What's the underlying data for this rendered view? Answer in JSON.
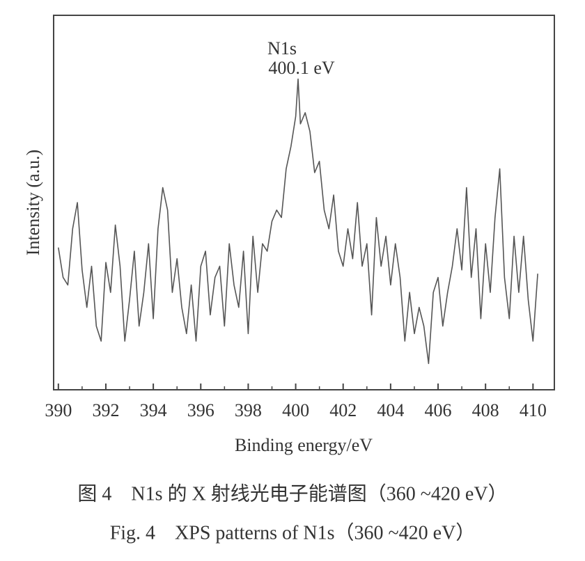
{
  "chart_data": {
    "type": "line",
    "annotations": [
      "N1s",
      "400.1 eV"
    ],
    "xlabel": "Binding energy/eV",
    "ylabel": "Intensity (a.u.)",
    "caption": [
      "图 4　N1s 的 X 射线光电子能谱图（360 ~420 eV）",
      "Fig. 4　XPS patterns of N1s（360 ~420 eV）"
    ],
    "x": [
      390.0,
      390.2,
      390.4,
      390.6,
      390.8,
      391.0,
      391.2,
      391.4,
      391.6,
      391.8,
      392.0,
      392.2,
      392.4,
      392.6,
      392.8,
      393.0,
      393.2,
      393.4,
      393.6,
      393.8,
      394.0,
      394.2,
      394.4,
      394.6,
      394.8,
      395.0,
      395.2,
      395.4,
      395.6,
      395.8,
      396.0,
      396.2,
      396.4,
      396.6,
      396.8,
      397.0,
      397.2,
      397.4,
      397.6,
      397.8,
      398.0,
      398.2,
      398.4,
      398.6,
      398.8,
      399.0,
      399.2,
      399.4,
      399.6,
      399.8,
      400.0,
      400.1,
      400.2,
      400.4,
      400.6,
      400.8,
      401.0,
      401.2,
      401.4,
      401.6,
      401.8,
      402.0,
      402.2,
      402.4,
      402.6,
      402.8,
      403.0,
      403.2,
      403.4,
      403.6,
      403.8,
      404.0,
      404.2,
      404.4,
      404.6,
      404.8,
      405.0,
      405.2,
      405.4,
      405.6,
      405.8,
      406.0,
      406.2,
      406.4,
      406.6,
      406.8,
      407.0,
      407.2,
      407.4,
      407.6,
      407.8,
      408.0,
      408.2,
      408.4,
      408.6,
      408.8,
      409.0,
      409.2,
      409.4,
      409.6,
      409.8,
      410.0,
      410.2
    ],
    "series": [
      {
        "color": "#555555",
        "values": [
          38,
          30,
          28,
          43,
          50,
          32,
          22,
          33,
          17,
          13,
          34,
          26,
          44,
          33,
          13,
          24,
          37,
          17,
          26,
          39,
          19,
          43,
          54,
          48,
          26,
          35,
          22,
          15,
          28,
          13,
          33,
          37,
          20,
          30,
          33,
          17,
          39,
          28,
          22,
          37,
          15,
          41,
          26,
          39,
          37,
          45,
          48,
          46,
          59,
          65,
          73,
          83,
          71,
          74,
          69,
          58,
          61,
          48,
          43,
          52,
          37,
          33,
          43,
          35,
          50,
          33,
          39,
          20,
          46,
          33,
          41,
          28,
          39,
          30,
          13,
          26,
          15,
          22,
          17,
          7,
          26,
          30,
          17,
          26,
          33,
          43,
          32,
          54,
          30,
          43,
          19,
          39,
          26,
          46,
          59,
          30,
          19,
          41,
          26,
          41,
          24,
          13,
          31
        ]
      }
    ],
    "xlim": [
      389.8,
      410.9
    ],
    "ylim": [
      0,
      100
    ],
    "xticks": [
      390,
      392,
      394,
      396,
      398,
      400,
      402,
      404,
      406,
      408,
      410
    ],
    "xminorticks": [
      391,
      393,
      395,
      397,
      399,
      401,
      403,
      405,
      407,
      409
    ]
  }
}
